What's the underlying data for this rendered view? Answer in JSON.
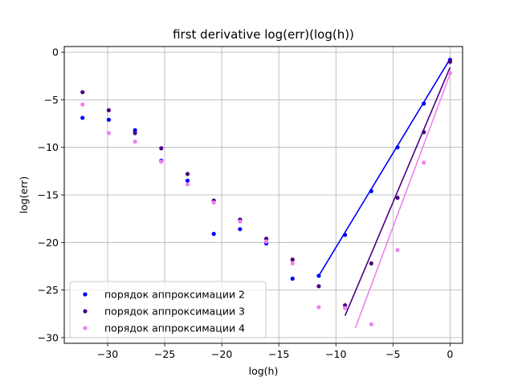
{
  "chart_data": {
    "type": "scatter",
    "title": "first derivative log(err)(log(h))",
    "xlabel": "log(h)",
    "ylabel": "log(err)",
    "xlim": [
      -33.8,
      1.1
    ],
    "ylim": [
      -30.6,
      0.6
    ],
    "xticks": [
      -30,
      -25,
      -20,
      -15,
      -10,
      -5,
      0
    ],
    "yticks": [
      0,
      -5,
      -10,
      -15,
      -20,
      -25,
      -30
    ],
    "xtick_labels": [
      "−30",
      "−25",
      "−20",
      "−15",
      "−10",
      "−5",
      "0"
    ],
    "ytick_labels": [
      "0",
      "−5",
      "−10",
      "−15",
      "−20",
      "−25",
      "−30"
    ],
    "grid": true,
    "legend_position": "lower-left",
    "series": [
      {
        "name": "порядок аппроксимации 2",
        "color": "#0000ff",
        "x": [
          0,
          -2.3,
          -4.6,
          -6.9,
          -9.2,
          -11.5,
          -13.8,
          -16.1,
          -18.4,
          -20.7,
          -23.0,
          -25.3,
          -27.6,
          -29.9,
          -32.2
        ],
        "y": [
          -0.8,
          -5.4,
          -10.0,
          -14.6,
          -19.2,
          -23.5,
          -23.8,
          -20.1,
          -18.6,
          -19.1,
          -13.5,
          -11.4,
          -8.2,
          -7.1,
          -6.9
        ],
        "fit": {
          "x": [
            -11.5,
            0
          ],
          "y": [
            -23.5,
            -0.7
          ]
        }
      },
      {
        "name": "порядок аппроксимации 3",
        "color": "#4b0082",
        "x": [
          0,
          -2.3,
          -4.6,
          -6.9,
          -9.2,
          -11.5,
          -13.8,
          -16.1,
          -18.4,
          -20.7,
          -23.0,
          -25.3,
          -27.6,
          -29.9,
          -32.2
        ],
        "y": [
          -1.0,
          -8.4,
          -15.3,
          -22.2,
          -26.6,
          -24.6,
          -21.8,
          -19.6,
          -17.6,
          -15.6,
          -12.8,
          -10.1,
          -8.5,
          -6.1,
          -4.2
        ],
        "fit": {
          "x": [
            -9.2,
            0
          ],
          "y": [
            -27.7,
            -1.6
          ]
        }
      },
      {
        "name": "порядок аппроксимации 4",
        "color": "#ee82ee",
        "x": [
          0,
          -2.3,
          -4.6,
          -6.9,
          -9.2,
          -11.5,
          -13.8,
          -16.1,
          -18.4,
          -20.7,
          -23.0,
          -25.3,
          -27.6,
          -29.9,
          -32.2
        ],
        "y": [
          -2.2,
          -11.6,
          -20.8,
          -28.6,
          -26.9,
          -26.8,
          -22.2,
          -19.9,
          -17.8,
          -15.8,
          -13.9,
          -11.5,
          -9.4,
          -8.5,
          -5.5
        ],
        "fit": {
          "x": [
            -8.3,
            0
          ],
          "y": [
            -29.0,
            -2.3
          ]
        }
      }
    ]
  }
}
